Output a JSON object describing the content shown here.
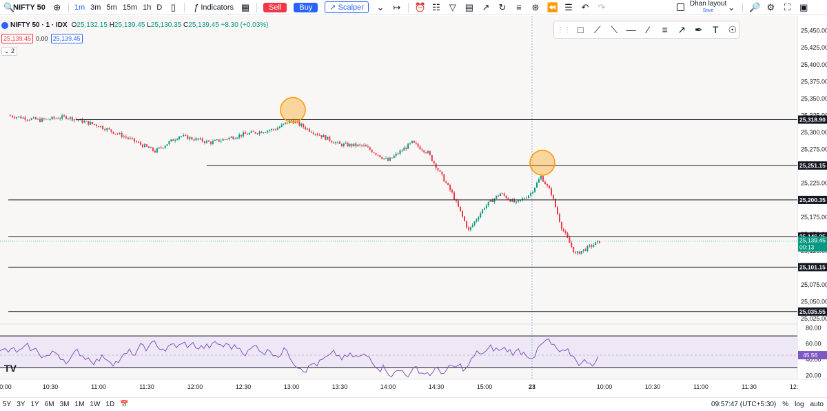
{
  "toolbar": {
    "symbol": "NIFTY 50",
    "timeframes": [
      "1m",
      "3m",
      "5m",
      "15m",
      "1h",
      "D"
    ],
    "active_timeframe": "1m",
    "indicators_label": "Indicators",
    "sell_label": "Sell",
    "buy_label": "Buy",
    "scalper_label": "Scalper",
    "layout_name": "Dhan layout",
    "layout_save": "Save"
  },
  "legend": {
    "title": "NIFTY 50 · 1 · IDX",
    "open_label": "O",
    "open": "25,132.15",
    "high_label": "H",
    "high": "25,139.45",
    "low_label": "L",
    "low": "25,130.35",
    "close_label": "C",
    "close": "25,139.45",
    "change": "+8.30 (+0.03%)",
    "sell_price": "25,139.45",
    "spread": "0.00",
    "buy_price": "25,139.45",
    "collapse": "2"
  },
  "colors": {
    "up": "#089981",
    "down": "#f23645",
    "accent": "#2962ff",
    "rsi": "#7e57c2",
    "circle": "#ff9800"
  },
  "chart_data": {
    "type": "candlestick",
    "price_axis": {
      "ylim": [
        25015,
        25470
      ],
      "ticks": [
        "25,450.00",
        "25,425.00",
        "25,400.00",
        "25,375.00",
        "25,350.00",
        "25,325.00",
        "25,300.00",
        "25,275.00",
        "25,250.00",
        "25,225.00",
        "25,200.00",
        "25,175.00",
        "25,150.00",
        "25,125.00",
        "25,100.00",
        "25,075.00",
        "25,050.00",
        "25,025.00"
      ]
    },
    "horizontal_levels": [
      {
        "value": 25318.9,
        "label": "25,318.90",
        "start": "10:45"
      },
      {
        "value": 25251.15,
        "label": "25,251.15",
        "start": "12:15"
      },
      {
        "value": 25200.35,
        "label": "25,200.35",
        "start": "10:00"
      },
      {
        "value": 25146.25,
        "label": "25,146.25",
        "start": "10:00"
      },
      {
        "value": 25101.15,
        "label": "25,101.15",
        "start": "10:00"
      },
      {
        "value": 25035.55,
        "label": "25,035.55",
        "start": "10:00"
      }
    ],
    "last_price": {
      "value": 25139.45,
      "label": "25,139.45",
      "countdown": "00:13"
    },
    "time_axis": {
      "ticks": [
        "0:00",
        "10:30",
        "11:00",
        "11:30",
        "12:00",
        "12:30",
        "13:00",
        "13:30",
        "14:00",
        "14:30",
        "15:00",
        "23",
        "10:00",
        "10:30",
        "11:00",
        "11:30",
        "12:"
      ]
    },
    "price_path": [
      [
        "10:00",
        25325
      ],
      [
        "10:20",
        25318
      ],
      [
        "10:40",
        25323
      ],
      [
        "11:00",
        25310
      ],
      [
        "11:20",
        25290
      ],
      [
        "11:35",
        25272
      ],
      [
        "11:50",
        25295
      ],
      [
        "12:10",
        25285
      ],
      [
        "12:30",
        25297
      ],
      [
        "12:50",
        25305
      ],
      [
        "13:00",
        25318
      ],
      [
        "13:10",
        25305
      ],
      [
        "13:30",
        25282
      ],
      [
        "13:45",
        25280
      ],
      [
        "14:00",
        25258
      ],
      [
        "14:15",
        25285
      ],
      [
        "14:25",
        25270
      ],
      [
        "14:40",
        25210
      ],
      [
        "14:50",
        25155
      ],
      [
        "15:00",
        25190
      ],
      [
        "15:10",
        25210
      ],
      [
        "15:20",
        25195
      ],
      [
        "15:30",
        25210
      ],
      [
        "23 09:15",
        25235
      ],
      [
        "23 09:25",
        25210
      ],
      [
        "23 09:35",
        25160
      ],
      [
        "23 09:45",
        25120
      ],
      [
        "23 09:53",
        25139
      ]
    ],
    "circles": [
      {
        "time": "13:00",
        "value": 25323
      },
      {
        "time": "23 09:15",
        "value": 25245
      }
    ],
    "rsi": {
      "levels": [
        70,
        30
      ],
      "ticks": [
        "80.00",
        "60.00",
        "40.00",
        "20.00"
      ],
      "last": "45.56",
      "ylim": [
        15,
        85
      ]
    }
  },
  "bottom": {
    "ranges": [
      "5Y",
      "3Y",
      "1Y",
      "6M",
      "3M",
      "1M",
      "1W",
      "1D"
    ],
    "clock": "09:57:47 (UTC+5:30)",
    "pct": "%",
    "log": "log",
    "auto": "auto"
  }
}
